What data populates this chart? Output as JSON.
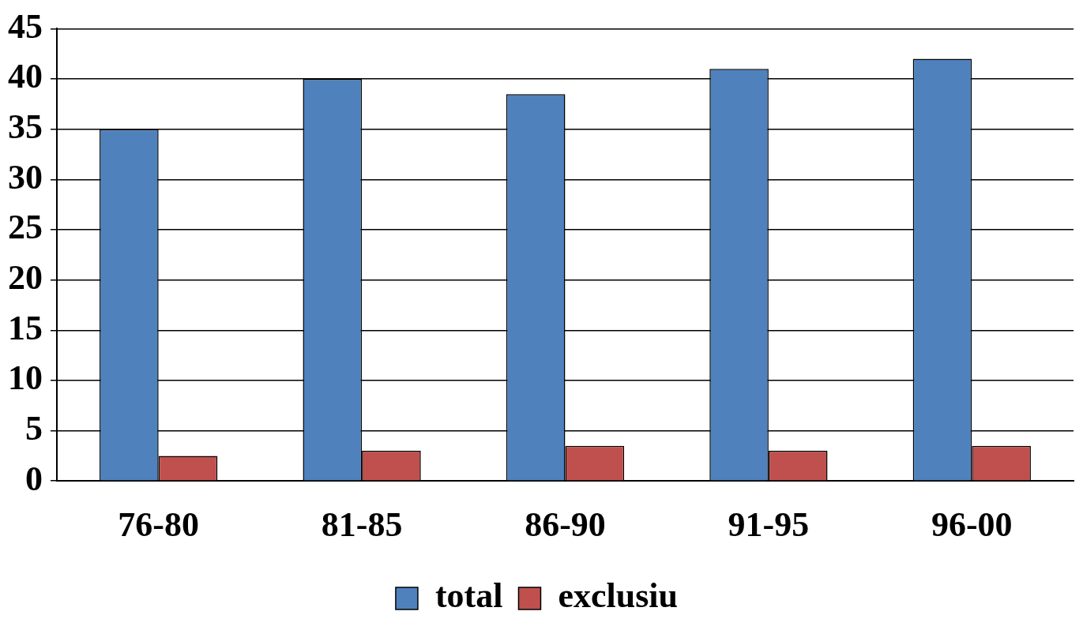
{
  "chart_data": {
    "type": "bar",
    "categories": [
      "76-80",
      "81-85",
      "86-90",
      "91-95",
      "96-00"
    ],
    "series": [
      {
        "name": "total",
        "color": "#4f81bd",
        "values": [
          35,
          40,
          38.5,
          41,
          42
        ]
      },
      {
        "name": "exclusiu",
        "color": "#c0504d",
        "values": [
          2.5,
          3,
          3.5,
          3,
          3.5
        ]
      }
    ],
    "ylim": [
      0,
      45
    ],
    "yticks": [
      0,
      5,
      10,
      15,
      20,
      25,
      30,
      35,
      40,
      45
    ],
    "grid": "y",
    "legend": "bottom"
  }
}
